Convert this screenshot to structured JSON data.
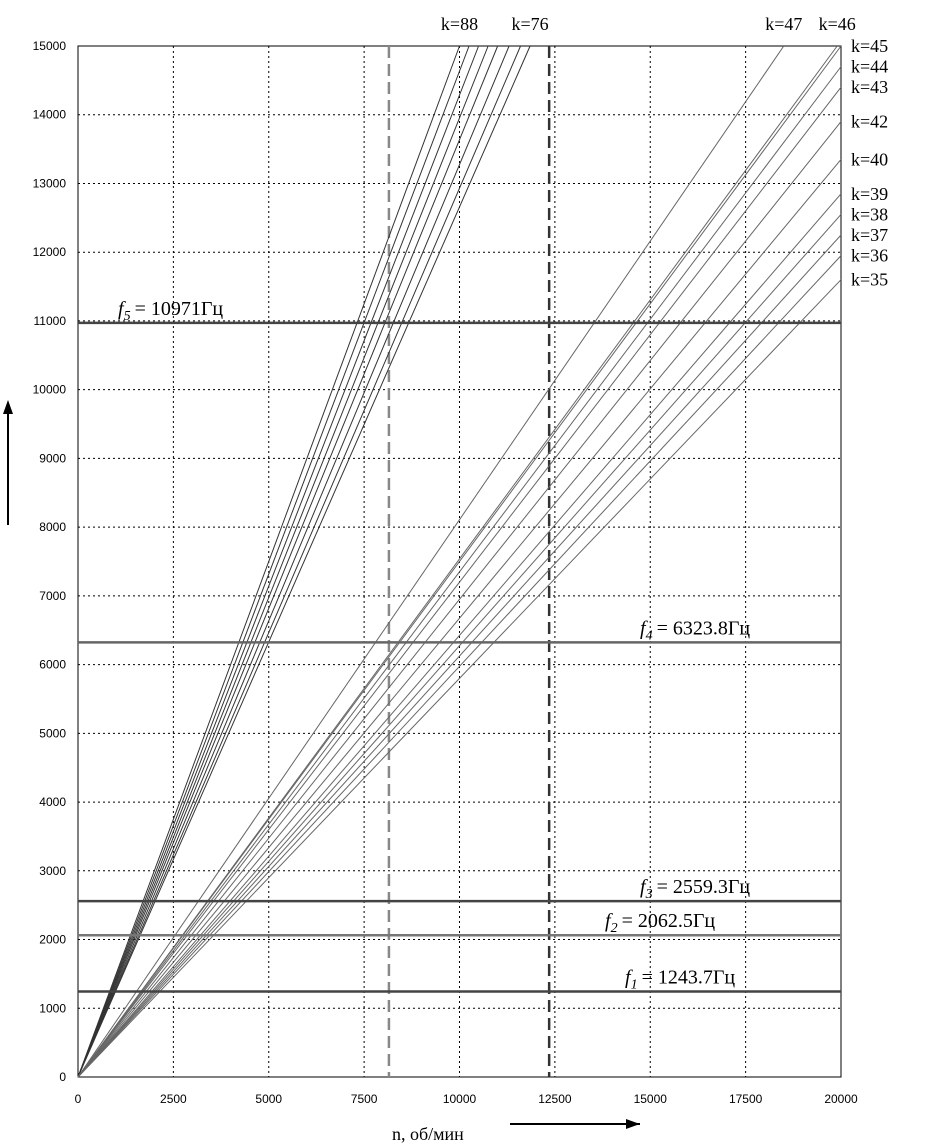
{
  "chart_data": {
    "type": "line",
    "x_label": "n, об/мин",
    "xlim": [
      0,
      20000
    ],
    "ylim": [
      0,
      15000
    ],
    "xticks": [
      0,
      2500,
      5000,
      7500,
      10000,
      12500,
      15000,
      17500,
      20000
    ],
    "yticks": [
      0,
      1000,
      2000,
      3000,
      4000,
      5000,
      6000,
      7000,
      8000,
      9000,
      10000,
      11000,
      12000,
      13000,
      14000,
      15000
    ],
    "grid": true,
    "series": [
      {
        "name": "k=88",
        "color": "#333333",
        "x": [
          0,
          10000
        ],
        "values": [
          0,
          15000
        ]
      },
      {
        "color": "#333333",
        "x": [
          0,
          10250
        ],
        "values": [
          0,
          15000
        ]
      },
      {
        "color": "#333333",
        "x": [
          0,
          10500
        ],
        "values": [
          0,
          15000
        ]
      },
      {
        "color": "#333333",
        "x": [
          0,
          10750
        ],
        "values": [
          0,
          15000
        ]
      },
      {
        "color": "#333333",
        "x": [
          0,
          11000
        ],
        "values": [
          0,
          15000
        ]
      },
      {
        "color": "#333333",
        "x": [
          0,
          11300
        ],
        "values": [
          0,
          15000
        ]
      },
      {
        "color": "#333333",
        "x": [
          0,
          11600
        ],
        "values": [
          0,
          15000
        ]
      },
      {
        "name": "k=76",
        "color": "#333333",
        "x": [
          0,
          11850
        ],
        "values": [
          0,
          15000
        ]
      },
      {
        "name": "k=47",
        "color": "#666666",
        "x": [
          0,
          18500
        ],
        "values": [
          0,
          15000
        ]
      },
      {
        "name": "k=46",
        "color": "#666666",
        "x": [
          0,
          19900
        ],
        "values": [
          0,
          15000
        ]
      },
      {
        "name": "k=45",
        "color": "#666666",
        "x": [
          0,
          20000
        ],
        "values": [
          0,
          15000
        ]
      },
      {
        "name": "k=44",
        "color": "#666666",
        "x": [
          0,
          20000
        ],
        "values": [
          0,
          14700
        ]
      },
      {
        "name": "k=43",
        "color": "#666666",
        "x": [
          0,
          20000
        ],
        "values": [
          0,
          14400
        ]
      },
      {
        "name": "k=42",
        "color": "#666666",
        "x": [
          0,
          20000
        ],
        "values": [
          0,
          13900
        ]
      },
      {
        "name": "k=40",
        "color": "#666666",
        "x": [
          0,
          20000
        ],
        "values": [
          0,
          13350
        ]
      },
      {
        "name": "k=39",
        "color": "#666666",
        "x": [
          0,
          20000
        ],
        "values": [
          0,
          12850
        ]
      },
      {
        "name": "k=38",
        "color": "#666666",
        "x": [
          0,
          20000
        ],
        "values": [
          0,
          12550
        ]
      },
      {
        "name": "k=37",
        "color": "#666666",
        "x": [
          0,
          20000
        ],
        "values": [
          0,
          12250
        ]
      },
      {
        "name": "k=36",
        "color": "#666666",
        "x": [
          0,
          20000
        ],
        "values": [
          0,
          11950
        ]
      },
      {
        "name": "k=35",
        "color": "#666666",
        "x": [
          0,
          20000
        ],
        "values": [
          0,
          11600
        ]
      }
    ],
    "hlines": [
      {
        "value": 10971,
        "symbol": "f",
        "index": "5",
        "text": "= 10971Гц",
        "color": "#444444"
      },
      {
        "value": 6323.8,
        "symbol": "f",
        "index": "4",
        "text": "= 6323.8Гц",
        "color": "#666666"
      },
      {
        "value": 2559.3,
        "symbol": "f",
        "index": "3",
        "text": "= 2559.3Гц",
        "color": "#444444"
      },
      {
        "value": 2062.5,
        "symbol": "f",
        "index": "2",
        "text": "= 2062.5Гц",
        "color": "#777777"
      },
      {
        "value": 1243.7,
        "symbol": "f",
        "index": "1",
        "text": "= 1243.7Гц",
        "color": "#444444"
      }
    ],
    "vlines": [
      {
        "value": 8150,
        "color": "#888888"
      },
      {
        "value": 12350,
        "color": "#333333"
      }
    ]
  }
}
